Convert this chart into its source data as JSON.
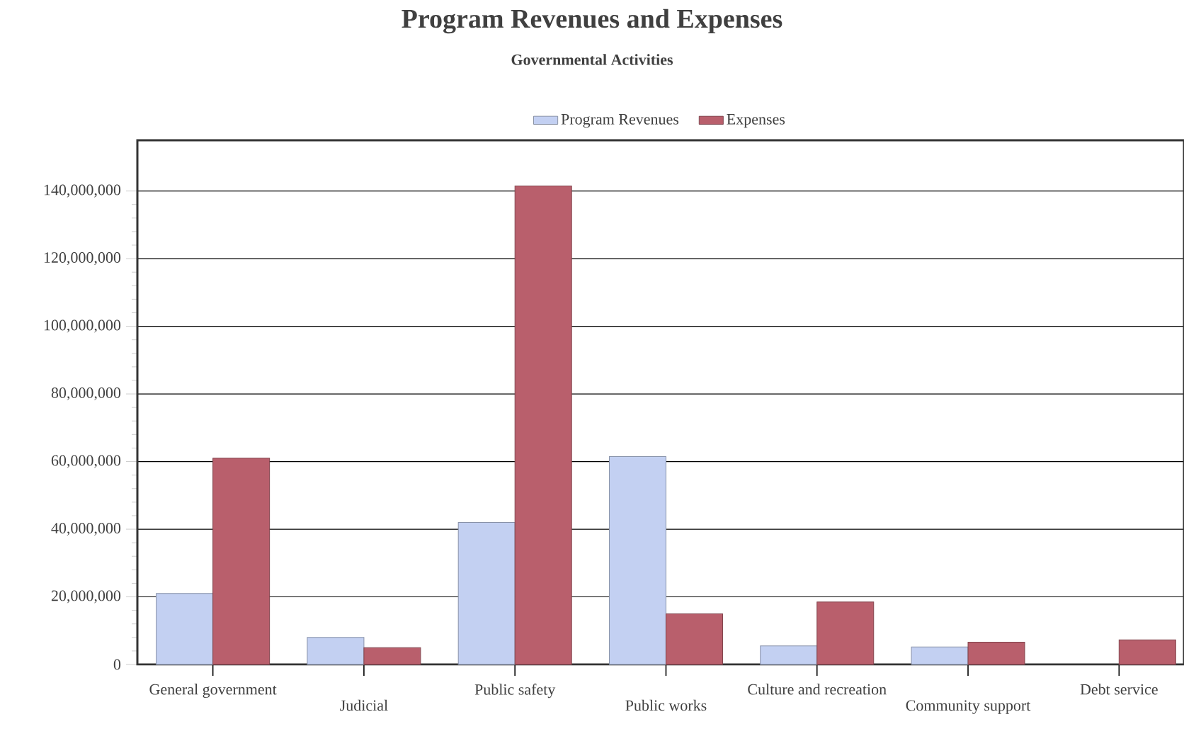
{
  "chart_data": {
    "type": "bar",
    "title": "Program Revenues and Expenses",
    "subtitle": "Governmental Activities",
    "categories": [
      "General government",
      "Judicial",
      "Public safety",
      "Public works",
      "Culture and recreation",
      "Community support",
      "Debt service"
    ],
    "series": [
      {
        "name": "Program Revenues",
        "color": "#c3d0f2",
        "values": [
          21000000,
          8000000,
          42000000,
          61500000,
          5500000,
          5200000,
          null
        ]
      },
      {
        "name": "Expenses",
        "color": "#b95f6c",
        "values": [
          61000000,
          5000000,
          141500000,
          15000000,
          18500000,
          6600000,
          7300000
        ]
      }
    ],
    "ylim": [
      0,
      155000000
    ],
    "yticks": [
      0,
      {
        "value": 20000000,
        "label": "20,000,000"
      },
      {
        "value": 40000000,
        "label": "40,000,000"
      },
      {
        "value": 60000000,
        "label": "60,000,000"
      },
      {
        "value": 80000000,
        "label": "80,000,000"
      },
      {
        "value": 100000000,
        "label": "100,000,000"
      },
      {
        "value": 120000000,
        "label": "120,000,000"
      },
      {
        "value": 140000000,
        "label": "140,000,000"
      }
    ],
    "grid": "y",
    "legend": "top"
  }
}
